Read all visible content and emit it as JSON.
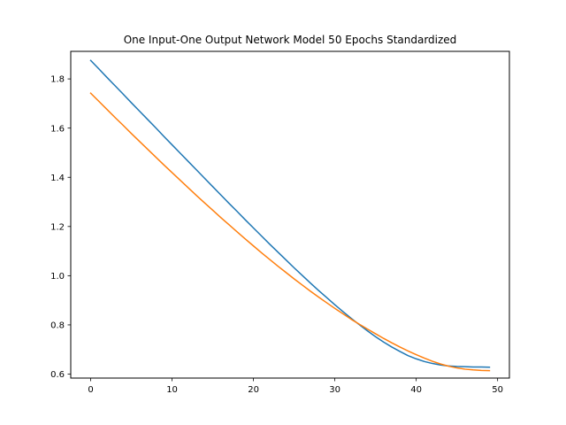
{
  "chart_data": {
    "type": "line",
    "title": "One Input-One Output Network Model 50 Epochs Standardized",
    "xlabel": "",
    "ylabel": "",
    "xlim": [
      -2.45,
      51.45
    ],
    "ylim": [
      0.5838,
      1.912
    ],
    "x_ticks": [
      0,
      10,
      20,
      30,
      40,
      50
    ],
    "y_ticks": [
      0.6,
      0.8,
      1.0,
      1.2,
      1.4,
      1.6,
      1.8
    ],
    "grid": false,
    "legend": "none",
    "colors": [
      "#1f77b4",
      "#ff7f0e"
    ],
    "x": [
      0,
      1,
      2,
      3,
      4,
      5,
      6,
      7,
      8,
      9,
      10,
      11,
      12,
      13,
      14,
      15,
      16,
      17,
      18,
      19,
      20,
      21,
      22,
      23,
      24,
      25,
      26,
      27,
      28,
      29,
      30,
      31,
      32,
      33,
      34,
      35,
      36,
      37,
      38,
      39,
      40,
      41,
      42,
      43,
      44,
      45,
      46,
      47,
      48,
      49
    ],
    "series": [
      {
        "values": [
          1.875,
          1.841,
          1.806,
          1.772,
          1.738,
          1.703,
          1.669,
          1.635,
          1.601,
          1.566,
          1.532,
          1.498,
          1.464,
          1.43,
          1.396,
          1.362,
          1.328,
          1.294,
          1.261,
          1.227,
          1.194,
          1.161,
          1.128,
          1.096,
          1.064,
          1.032,
          1.001,
          0.97,
          0.94,
          0.911,
          0.882,
          0.854,
          0.827,
          0.801,
          0.776,
          0.752,
          0.73,
          0.71,
          0.692,
          0.675,
          0.662,
          0.651,
          0.643,
          0.637,
          0.633,
          0.631,
          0.63,
          0.629,
          0.629,
          0.628
        ]
      },
      {
        "values": [
          1.742,
          1.709,
          1.676,
          1.643,
          1.611,
          1.578,
          1.546,
          1.514,
          1.482,
          1.45,
          1.419,
          1.388,
          1.357,
          1.326,
          1.296,
          1.266,
          1.236,
          1.207,
          1.178,
          1.149,
          1.121,
          1.093,
          1.066,
          1.039,
          1.013,
          0.987,
          0.962,
          0.937,
          0.913,
          0.89,
          0.867,
          0.845,
          0.823,
          0.803,
          0.783,
          0.764,
          0.745,
          0.727,
          0.71,
          0.694,
          0.679,
          0.665,
          0.652,
          0.641,
          0.632,
          0.625,
          0.62,
          0.617,
          0.615,
          0.614
        ]
      }
    ]
  }
}
